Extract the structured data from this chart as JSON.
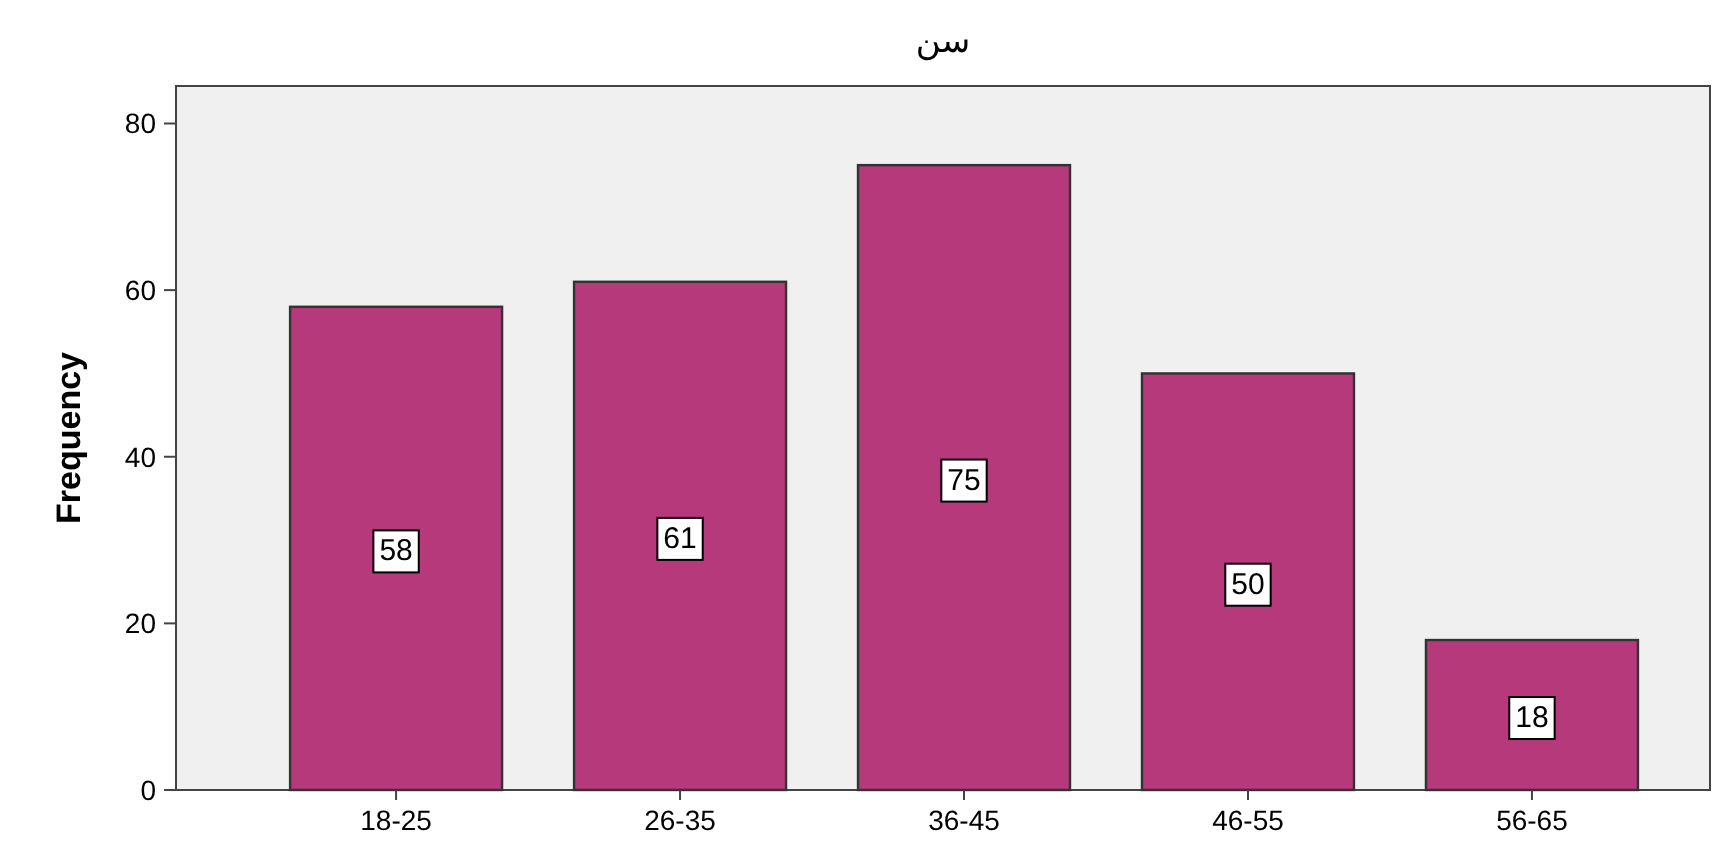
{
  "chart_data": {
    "type": "bar",
    "title": "سن",
    "ylabel": "Frequency",
    "categories": [
      "18-25",
      "26-35",
      "36-45",
      "46-55",
      "56-65"
    ],
    "values": [
      58,
      61,
      75,
      50,
      18
    ],
    "color": "#b5397b",
    "data_labels": true,
    "ylim": [
      0,
      84.5
    ],
    "yticks": [
      0,
      20,
      40,
      60,
      80
    ],
    "grid": false
  }
}
